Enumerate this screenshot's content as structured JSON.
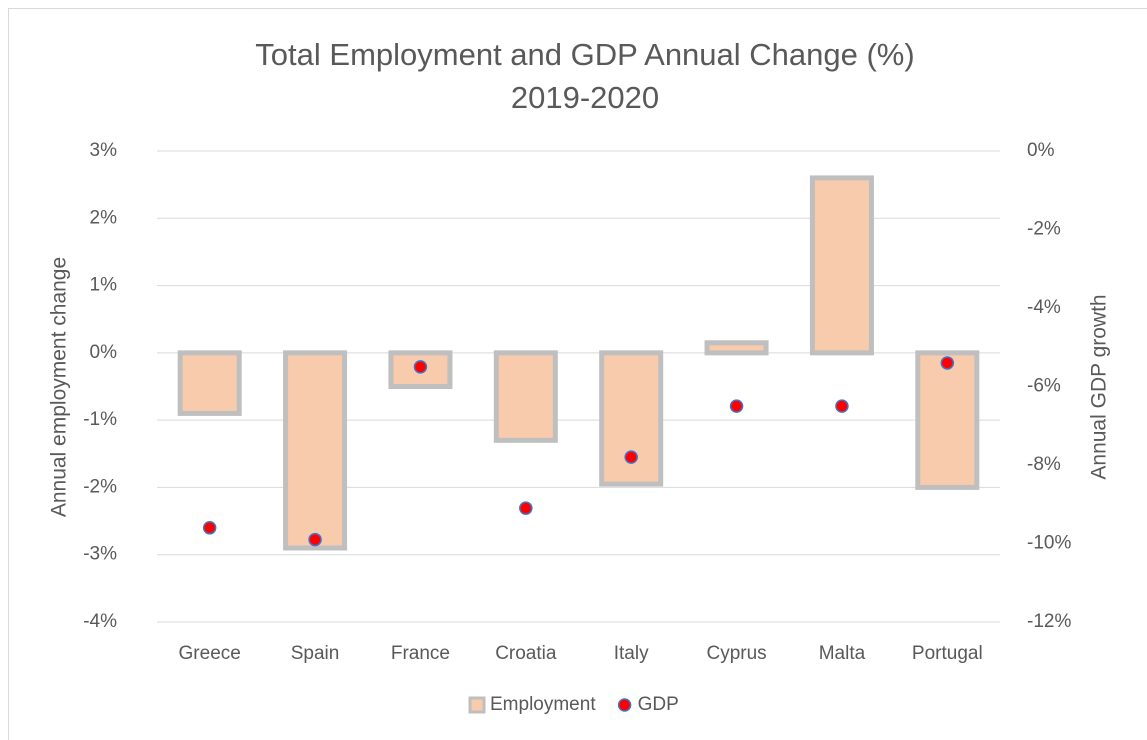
{
  "chart_data": {
    "type": "bar",
    "title": "Total Employment and GDP Annual Change (%)",
    "subtitle": "2019-2020",
    "y_label": "Annual employment change",
    "y2_label": "Annual GDP growth",
    "categories": [
      "Greece",
      "Spain",
      "France",
      "Croatia",
      "Italy",
      "Cyprus",
      "Malta",
      "Portugal"
    ],
    "series": [
      {
        "name": "Employment",
        "type": "bar",
        "color": "#f8cbad",
        "values": [
          -0.9,
          -2.9,
          -0.5,
          -1.3,
          -1.95,
          0.15,
          2.6,
          -2.0
        ]
      },
      {
        "name": "GDP",
        "type": "scatter",
        "axis": "y2",
        "color": "#ff0000",
        "values": [
          -9.6,
          -9.9,
          -5.5,
          -9.1,
          -7.8,
          -6.5,
          -6.5,
          -5.4
        ]
      }
    ],
    "ylim": [
      -4,
      3
    ],
    "yticks": [
      {
        "value": -4,
        "label": "-4%"
      },
      {
        "value": -3,
        "label": "-3%"
      },
      {
        "value": -2,
        "label": "-2%"
      },
      {
        "value": -1,
        "label": "-1%"
      },
      {
        "value": 0,
        "label": "0%"
      },
      {
        "value": 1,
        "label": "1%"
      },
      {
        "value": 2,
        "label": "2%"
      },
      {
        "value": 3,
        "label": "3%"
      }
    ],
    "y2lim": [
      -12,
      0
    ],
    "y2ticks": [
      {
        "value": -12,
        "label": "-12%"
      },
      {
        "value": -10,
        "label": "-10%"
      },
      {
        "value": -8,
        "label": "-8%"
      },
      {
        "value": -6,
        "label": "-6%"
      },
      {
        "value": -4,
        "label": "-4%"
      },
      {
        "value": -2,
        "label": "-2%"
      },
      {
        "value": 0,
        "label": "0%"
      }
    ],
    "grid": true
  }
}
